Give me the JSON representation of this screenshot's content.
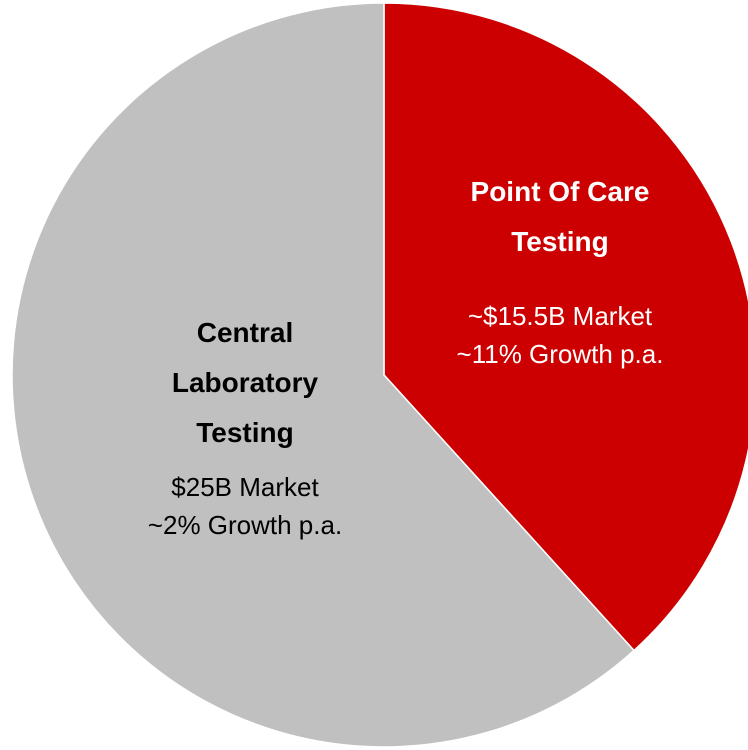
{
  "chart_data": {
    "type": "pie",
    "categories": [
      "Point Of Care Testing",
      "Central Laboratory Testing"
    ],
    "values": [
      15.5,
      25
    ],
    "value_labels": [
      "~$15.5B Market",
      "$25B Market"
    ],
    "annotations": [
      "~11% Growth p.a.",
      "~2% Growth p.a."
    ],
    "colors": [
      "#cc0000",
      "#c0c0c0"
    ],
    "label_colors": [
      "#ffffff",
      "#000000"
    ]
  }
}
